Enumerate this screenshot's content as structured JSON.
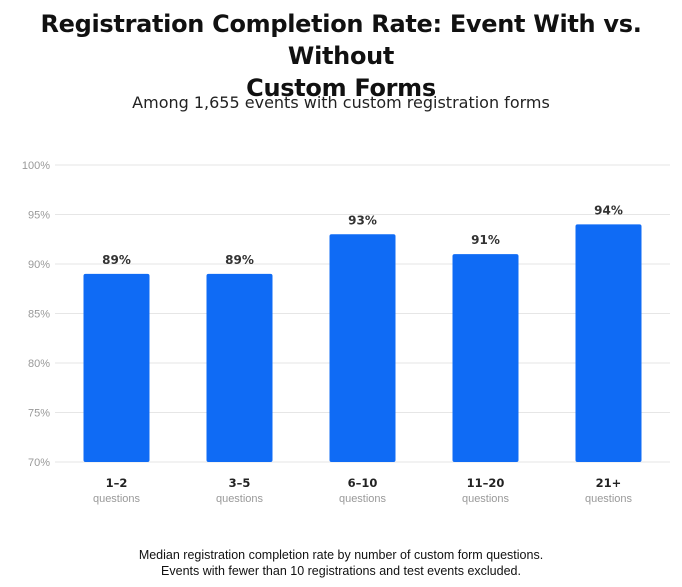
{
  "title_lines": [
    "Registration Completion Rate: Event With vs. Without",
    "Custom Forms"
  ],
  "subtitle": "Among 1,655 events with custom registration forms",
  "footnote_lines": [
    "Median registration completion rate by number of custom form questions.",
    "Events with fewer than 10 registrations and test events excluded."
  ],
  "colors": {
    "bar": "#0f6bf5",
    "grid": "#e6e6e6",
    "tick": "#999999"
  },
  "chart_data": {
    "type": "bar",
    "categories": [
      "1–2",
      "3–5",
      "6–10",
      "11–20",
      "21+"
    ],
    "category_sublabel": "questions",
    "values": [
      89,
      89,
      93,
      91,
      94
    ],
    "value_labels": [
      "89%",
      "89%",
      "93%",
      "91%",
      "94%"
    ],
    "ylim": [
      70,
      100
    ],
    "yticks": [
      100,
      95,
      90,
      85,
      80,
      75,
      70
    ],
    "ytick_labels": [
      "100%",
      "95%",
      "90%",
      "85%",
      "80%",
      "75%",
      "70%"
    ],
    "grid": true,
    "xlabel": "",
    "ylabel": ""
  }
}
